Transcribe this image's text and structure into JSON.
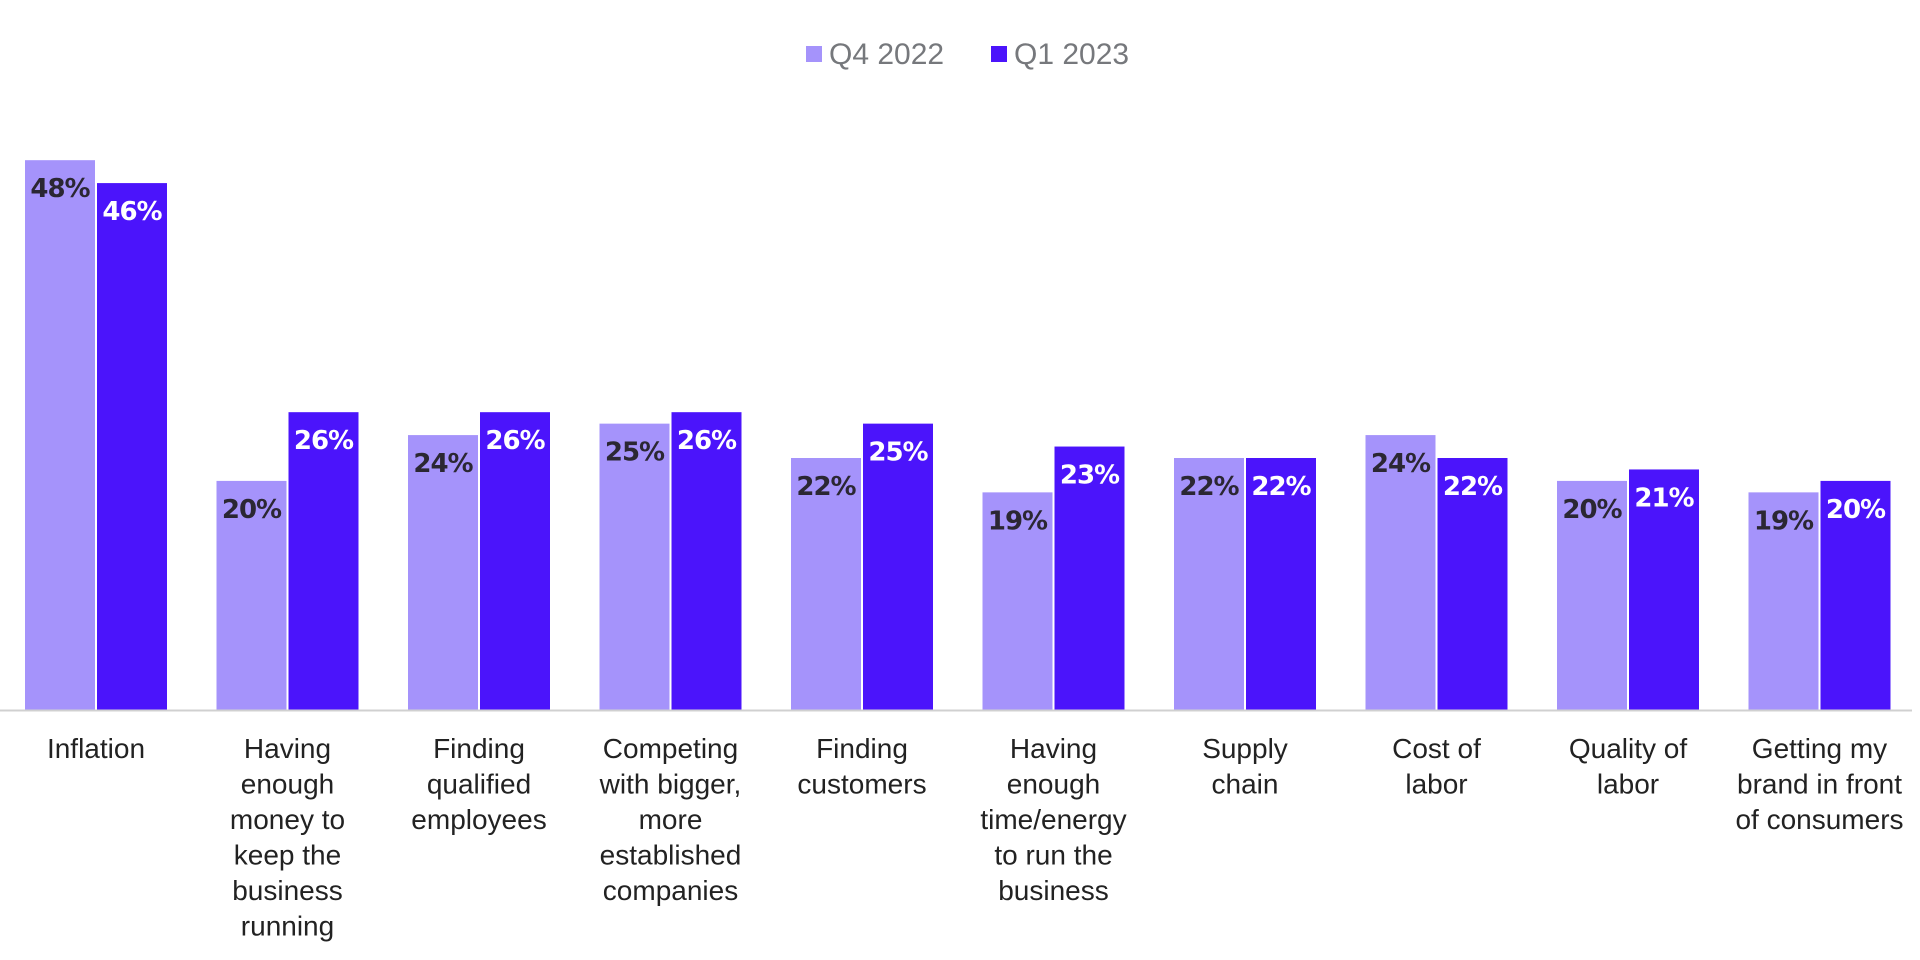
{
  "chart_data": {
    "type": "bar",
    "title": "",
    "xlabel": "",
    "ylabel": "",
    "ylim": [
      0,
      55
    ],
    "grid": false,
    "legend_position": "top-center",
    "categories": [
      "Inflation",
      "Having enough money to keep the business running",
      "Finding qualified employees",
      "Competing with bigger, more established companies",
      "Finding customers",
      "Having enough time/energy to run the business",
      "Supply chain",
      "Cost of labor",
      "Quality of labor",
      "Getting my brand in front of consumers"
    ],
    "category_lines": [
      [
        "Inflation"
      ],
      [
        "Having",
        "enough",
        "money to",
        "keep the",
        "business",
        "running"
      ],
      [
        "Finding",
        "qualified",
        "employees"
      ],
      [
        "Competing",
        "with bigger,",
        "more",
        "established",
        "companies"
      ],
      [
        "Finding",
        "customers"
      ],
      [
        "Having",
        "enough",
        "time/energy",
        "to run the",
        "business"
      ],
      [
        "Supply",
        "chain"
      ],
      [
        "Cost of",
        "labor"
      ],
      [
        "Quality of",
        "labor"
      ],
      [
        "Getting my",
        "brand in front",
        "of consumers"
      ]
    ],
    "series": [
      {
        "name": "Q4 2022",
        "color": "#a593fb",
        "label_color": "#2b2733",
        "values": [
          48,
          20,
          24,
          25,
          22,
          19,
          22,
          24,
          20,
          19
        ],
        "labels": [
          "48%",
          "20%",
          "24%",
          "25%",
          "22%",
          "19%",
          "22%",
          "24%",
          "20%",
          "19%"
        ]
      },
      {
        "name": "Q1 2023",
        "color": "#4b14fb",
        "label_color": "#ffffff",
        "values": [
          46,
          26,
          26,
          26,
          25,
          23,
          22,
          22,
          21,
          20
        ],
        "labels": [
          "46%",
          "26%",
          "26%",
          "26%",
          "25%",
          "23%",
          "22%",
          "22%",
          "21%",
          "20%"
        ]
      }
    ],
    "axis_color": "#d0d0d0"
  }
}
